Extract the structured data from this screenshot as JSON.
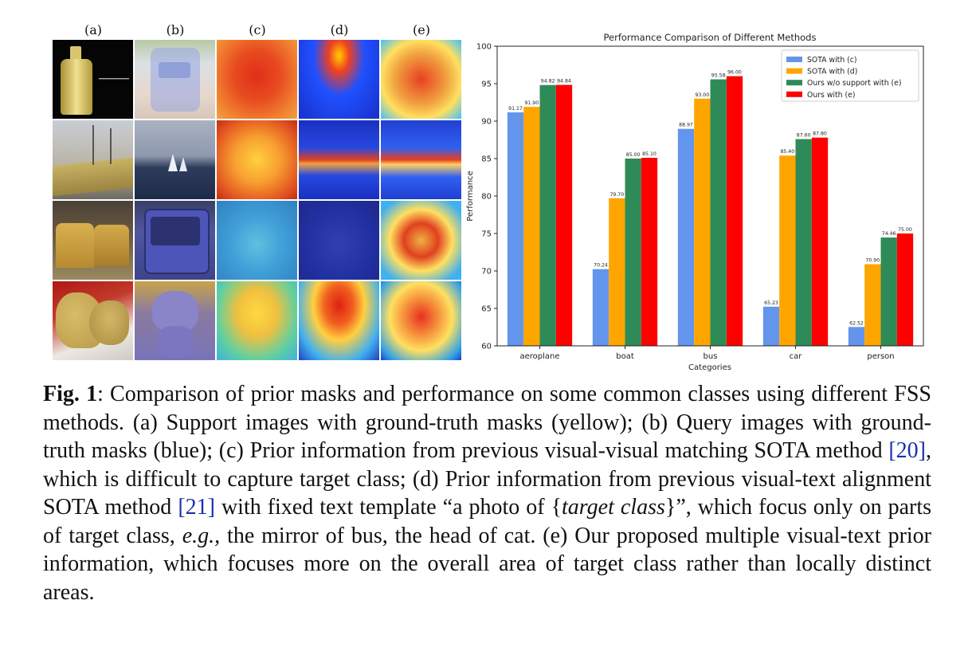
{
  "figure": {
    "column_labels": [
      "(a)",
      "(b)",
      "(c)",
      "(d)",
      "(e)"
    ],
    "support_image_inscription": "[illegible small text]"
  },
  "chart_data": {
    "type": "bar",
    "title": "Performance Comparison of Different Methods",
    "xlabel": "Categories",
    "ylabel": "Performance",
    "ylim": [
      60,
      100
    ],
    "yticks": [
      60,
      65,
      70,
      75,
      80,
      85,
      90,
      95,
      100
    ],
    "categories": [
      "aeroplane",
      "boat",
      "bus",
      "car",
      "person"
    ],
    "series": [
      {
        "name": "SOTA with (c)",
        "color": "#6495ed",
        "values": [
          91.17,
          70.24,
          88.97,
          65.23,
          62.52
        ],
        "labels": [
          "91.17",
          "70.24",
          "88.97",
          "65.23",
          "62.52"
        ]
      },
      {
        "name": "SOTA with (d)",
        "color": "#ffa500",
        "values": [
          91.9,
          79.7,
          93.0,
          85.4,
          70.9
        ],
        "labels": [
          "91.90",
          "79.70",
          "93.00",
          "85.40",
          "70.90"
        ]
      },
      {
        "name": "Ours w/o support with (e)",
        "color": "#2e8b57",
        "values": [
          94.82,
          85.0,
          95.58,
          87.6,
          74.46
        ],
        "labels": [
          "94.82",
          "85.00",
          "95.58",
          "87.60",
          "74.46"
        ]
      },
      {
        "name": "Ours with (e)",
        "color": "#ff0000",
        "values": [
          94.84,
          85.1,
          96.0,
          87.8,
          75.0
        ],
        "labels": [
          "94.84",
          "85.10",
          "96.00",
          "87.80",
          "75.00"
        ]
      }
    ],
    "legend_position": "top-right",
    "grid": false
  },
  "caption": {
    "label": "Fig. 1",
    "p1": ": Comparison of prior masks and performance on some common classes using different FSS methods. (a) Support images with ground-truth masks (yellow); (b) Query images with ground-truth masks (blue); (c) Prior information from previous visual-visual matching SOTA method ",
    "ref1": "[20]",
    "p2": ", which is difficult to capture target class; (d) Prior information from previous visual-text alignment SOTA method ",
    "ref2": "[21]",
    "p3": " with fixed text template “a photo of {",
    "template_var": "target class",
    "p4": "}”, which focus only on parts of target class, ",
    "eg": "e.g.,",
    "p5": " the mirror of bus, the head of cat. (e) Our proposed multiple visual-text prior information, which focuses more on the overall area of target class rather than locally distinct areas."
  }
}
